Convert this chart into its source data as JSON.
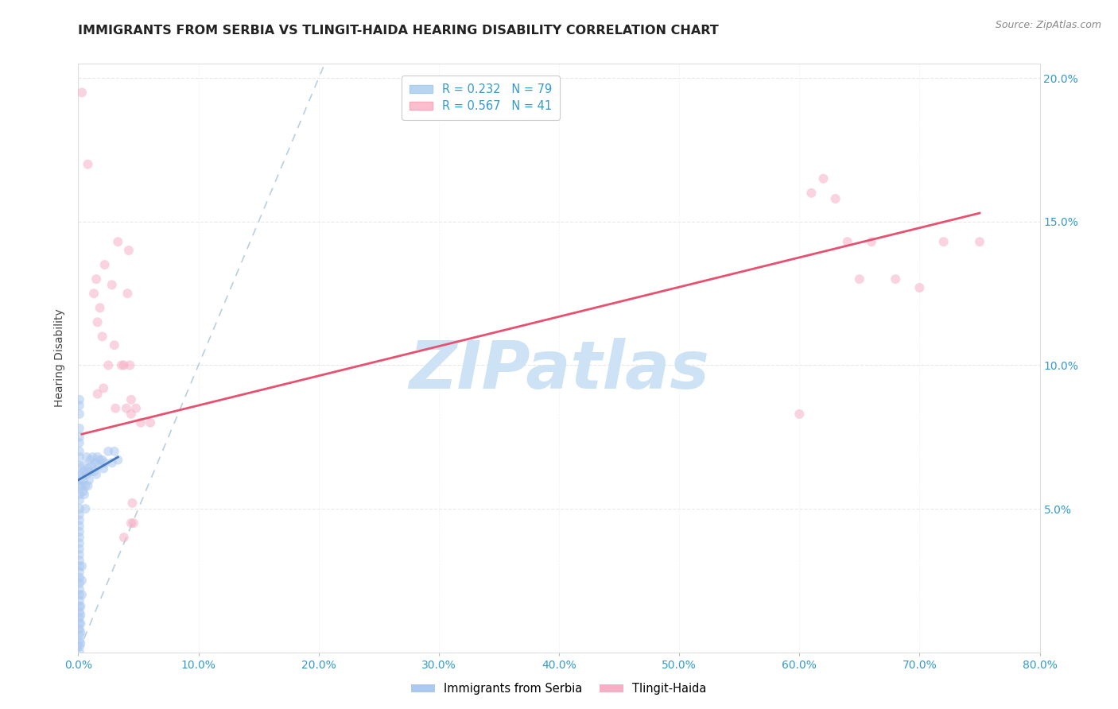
{
  "title": "IMMIGRANTS FROM SERBIA VS TLINGIT-HAIDA HEARING DISABILITY CORRELATION CHART",
  "source": "Source: ZipAtlas.com",
  "ylabel": "Hearing Disability",
  "x_tick_labels": [
    "0.0%",
    "10.0%",
    "20.0%",
    "30.0%",
    "40.0%",
    "50.0%",
    "60.0%",
    "70.0%",
    "80.0%"
  ],
  "y_tick_labels": [
    "5.0%",
    "10.0%",
    "15.0%",
    "20.0%"
  ],
  "xlim": [
    0.0,
    0.8
  ],
  "ylim": [
    0.0,
    0.205
  ],
  "legend_entries": [
    {
      "label": "R = 0.232   N = 79",
      "color": "#b8d4f0"
    },
    {
      "label": "R = 0.567   N = 41",
      "color": "#f9bfce"
    }
  ],
  "watermark": "ZIPatlas",
  "watermark_color": "#cde3f5",
  "watermark_fontsize": 60,
  "serbia_color": "#aac8f0",
  "tlingit_color": "#f5b0c5",
  "serbia_line_color": "#4477bb",
  "tlingit_line_color": "#e85070",
  "ref_line_color": "#b8cfe0",
  "serbia_scatter": [
    [
      0.001,
      0.088
    ],
    [
      0.001,
      0.086
    ],
    [
      0.001,
      0.083
    ],
    [
      0.001,
      0.078
    ],
    [
      0.001,
      0.075
    ],
    [
      0.001,
      0.073
    ],
    [
      0.001,
      0.07
    ],
    [
      0.001,
      0.068
    ],
    [
      0.001,
      0.065
    ],
    [
      0.001,
      0.062
    ],
    [
      0.001,
      0.06
    ],
    [
      0.001,
      0.058
    ],
    [
      0.001,
      0.055
    ],
    [
      0.001,
      0.053
    ],
    [
      0.001,
      0.05
    ],
    [
      0.001,
      0.048
    ],
    [
      0.001,
      0.046
    ],
    [
      0.001,
      0.044
    ],
    [
      0.001,
      0.042
    ],
    [
      0.001,
      0.04
    ],
    [
      0.001,
      0.038
    ],
    [
      0.001,
      0.036
    ],
    [
      0.001,
      0.034
    ],
    [
      0.001,
      0.032
    ],
    [
      0.001,
      0.03
    ],
    [
      0.001,
      0.028
    ],
    [
      0.001,
      0.026
    ],
    [
      0.001,
      0.024
    ],
    [
      0.001,
      0.022
    ],
    [
      0.001,
      0.02
    ],
    [
      0.001,
      0.018
    ],
    [
      0.001,
      0.016
    ],
    [
      0.001,
      0.014
    ],
    [
      0.001,
      0.012
    ],
    [
      0.001,
      0.01
    ],
    [
      0.001,
      0.008
    ],
    [
      0.001,
      0.006
    ],
    [
      0.001,
      0.004
    ],
    [
      0.001,
      0.002
    ],
    [
      0.001,
      0.0
    ],
    [
      0.002,
      0.003
    ],
    [
      0.002,
      0.007
    ],
    [
      0.002,
      0.01
    ],
    [
      0.002,
      0.013
    ],
    [
      0.002,
      0.016
    ],
    [
      0.003,
      0.02
    ],
    [
      0.003,
      0.025
    ],
    [
      0.003,
      0.03
    ],
    [
      0.003,
      0.058
    ],
    [
      0.003,
      0.062
    ],
    [
      0.004,
      0.056
    ],
    [
      0.004,
      0.06
    ],
    [
      0.004,
      0.065
    ],
    [
      0.005,
      0.055
    ],
    [
      0.005,
      0.063
    ],
    [
      0.006,
      0.05
    ],
    [
      0.006,
      0.058
    ],
    [
      0.007,
      0.062
    ],
    [
      0.007,
      0.068
    ],
    [
      0.008,
      0.058
    ],
    [
      0.008,
      0.064
    ],
    [
      0.009,
      0.06
    ],
    [
      0.01,
      0.063
    ],
    [
      0.01,
      0.067
    ],
    [
      0.011,
      0.065
    ],
    [
      0.012,
      0.068
    ],
    [
      0.013,
      0.063
    ],
    [
      0.014,
      0.066
    ],
    [
      0.015,
      0.062
    ],
    [
      0.016,
      0.068
    ],
    [
      0.017,
      0.065
    ],
    [
      0.018,
      0.067
    ],
    [
      0.02,
      0.067
    ],
    [
      0.021,
      0.064
    ],
    [
      0.022,
      0.066
    ],
    [
      0.025,
      0.07
    ],
    [
      0.028,
      0.066
    ],
    [
      0.03,
      0.07
    ],
    [
      0.033,
      0.067
    ]
  ],
  "tlingit_scatter": [
    [
      0.003,
      0.195
    ],
    [
      0.008,
      0.17
    ],
    [
      0.013,
      0.125
    ],
    [
      0.015,
      0.13
    ],
    [
      0.016,
      0.115
    ],
    [
      0.016,
      0.09
    ],
    [
      0.018,
      0.12
    ],
    [
      0.02,
      0.11
    ],
    [
      0.021,
      0.092
    ],
    [
      0.022,
      0.135
    ],
    [
      0.025,
      0.1
    ],
    [
      0.028,
      0.128
    ],
    [
      0.03,
      0.107
    ],
    [
      0.031,
      0.085
    ],
    [
      0.033,
      0.143
    ],
    [
      0.036,
      0.1
    ],
    [
      0.038,
      0.1
    ],
    [
      0.04,
      0.085
    ],
    [
      0.041,
      0.125
    ],
    [
      0.042,
      0.14
    ],
    [
      0.043,
      0.1
    ],
    [
      0.044,
      0.088
    ],
    [
      0.044,
      0.083
    ],
    [
      0.045,
      0.052
    ],
    [
      0.046,
      0.045
    ],
    [
      0.048,
      0.085
    ],
    [
      0.052,
      0.08
    ],
    [
      0.06,
      0.08
    ],
    [
      0.038,
      0.04
    ],
    [
      0.044,
      0.045
    ],
    [
      0.6,
      0.083
    ],
    [
      0.61,
      0.16
    ],
    [
      0.62,
      0.165
    ],
    [
      0.63,
      0.158
    ],
    [
      0.64,
      0.143
    ],
    [
      0.65,
      0.13
    ],
    [
      0.66,
      0.143
    ],
    [
      0.68,
      0.13
    ],
    [
      0.7,
      0.127
    ],
    [
      0.72,
      0.143
    ],
    [
      0.75,
      0.143
    ]
  ],
  "serbia_line_x": [
    0.0,
    0.033
  ],
  "serbia_line_y": [
    0.06,
    0.068
  ],
  "tlingit_line_x": [
    0.003,
    0.75
  ],
  "tlingit_line_y": [
    0.076,
    0.153
  ],
  "ref_line_x": [
    0.0,
    0.205
  ],
  "ref_line_y": [
    0.0,
    0.205
  ],
  "marker_size": 75,
  "alpha": 0.55,
  "grid_color": "#e8e8e8",
  "bg_color": "#ffffff",
  "title_fontsize": 11.5,
  "axis_label_fontsize": 10,
  "tick_fontsize": 10,
  "source_fontsize": 9,
  "legend_fontsize": 10.5
}
